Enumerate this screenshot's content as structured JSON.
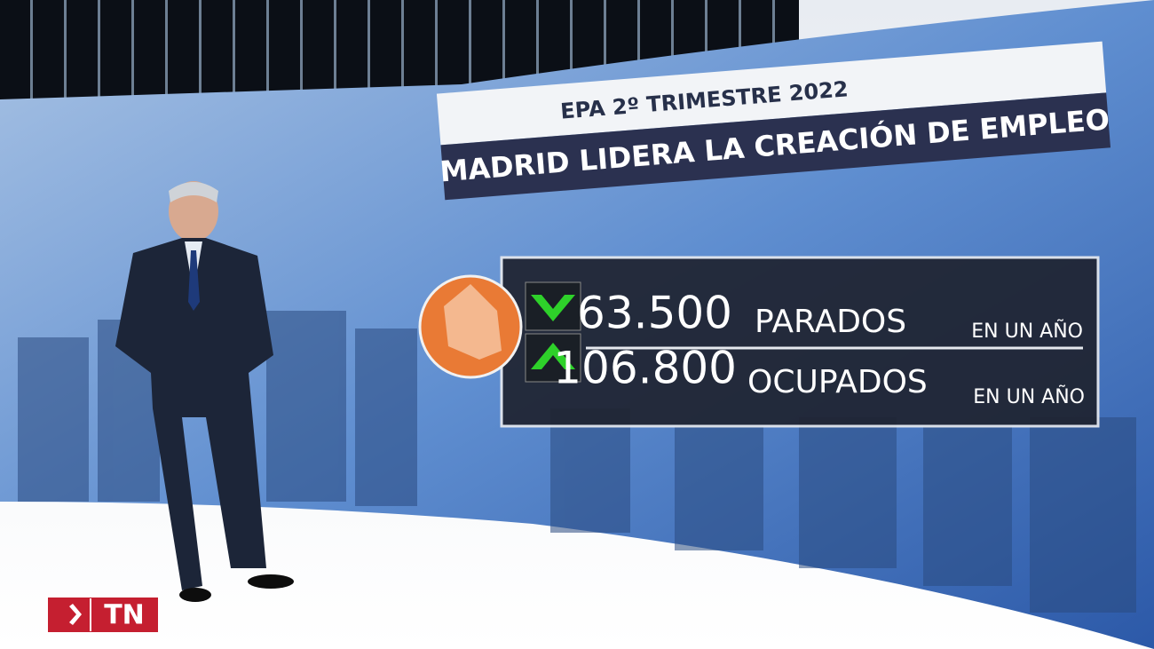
{
  "header": {
    "subtitle": "EPA  2º TRIMESTRE 2022",
    "title": "MADRID LIDERA LA CREACIÓN DE EMPLEO"
  },
  "rows": [
    {
      "value": "63.500",
      "label": "PARADOS",
      "period": "EN UN AÑO"
    },
    {
      "value": "106.800",
      "label": "OCUPADOS",
      "period": "EN UN AÑO"
    }
  ],
  "logo": "TN"
}
